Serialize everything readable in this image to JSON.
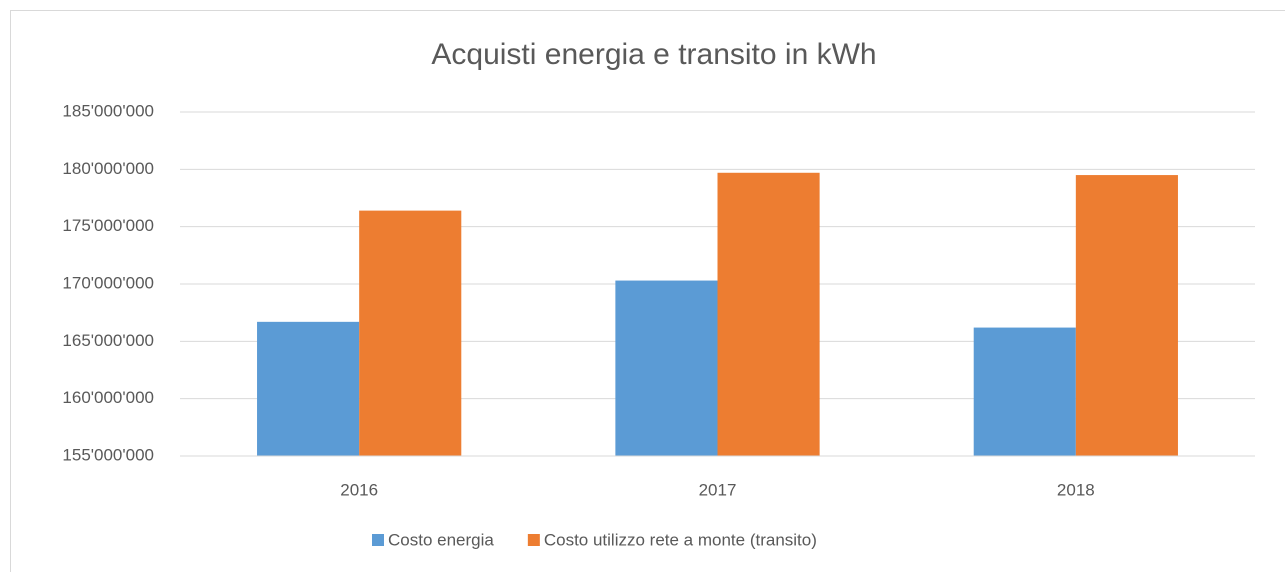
{
  "chart_data": {
    "type": "bar",
    "title": "Acquisti energia e transito in kWh",
    "categories": [
      "2016",
      "2017",
      "2018"
    ],
    "series": [
      {
        "name": "Costo energia",
        "color": "#5b9bd5",
        "values": [
          166700000,
          170300000,
          166200000
        ]
      },
      {
        "name": "Costo utilizzo rete a monte (transito)",
        "color": "#ed7d31",
        "values": [
          176400000,
          179700000,
          179500000
        ]
      }
    ],
    "ylim": [
      155000000,
      185000000
    ],
    "yticks": [
      {
        "value": 155000000,
        "label": "155'000'000"
      },
      {
        "value": 160000000,
        "label": "160'000'000"
      },
      {
        "value": 165000000,
        "label": "165'000'000"
      },
      {
        "value": 170000000,
        "label": "170'000'000"
      },
      {
        "value": 175000000,
        "label": "175'000'000"
      },
      {
        "value": 180000000,
        "label": "180'000'000"
      },
      {
        "value": 185000000,
        "label": "185'000'000"
      }
    ],
    "grid": true,
    "legend": "bottom"
  }
}
